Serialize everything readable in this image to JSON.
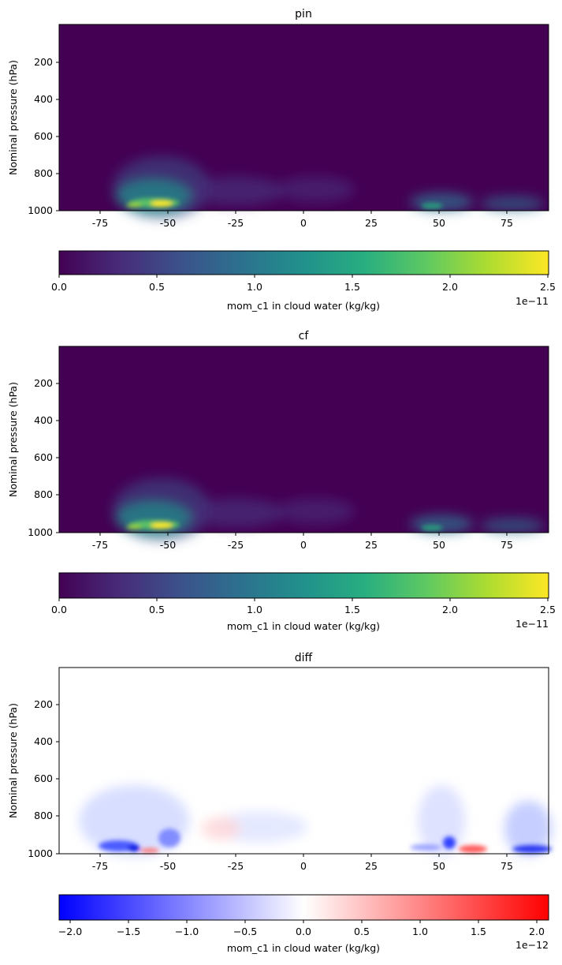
{
  "chart_data": [
    {
      "type": "heatmap",
      "title": "pin",
      "ylabel": "Nominal pressure (hPa)",
      "xlim": [
        -90,
        90
      ],
      "ylim": [
        1000,
        0
      ],
      "x_ticks": [
        "-75",
        "-50",
        "-25",
        "0",
        "25",
        "50",
        "75"
      ],
      "y_ticks": [
        "200",
        "400",
        "600",
        "800",
        "1000"
      ],
      "colormap": "viridis",
      "colorbar": {
        "label": "mom_c1 in cloud water (kg/kg)",
        "range": [
          0.0,
          2.5
        ],
        "ticks": [
          "0.0",
          "0.5",
          "1.0",
          "1.5",
          "2.0",
          "2.5"
        ],
        "exponent": "1e−11"
      },
      "features": [
        {
          "lat": -55,
          "p": 965,
          "value": 2.5
        },
        {
          "lat": -52,
          "p": 900,
          "value": 1.1
        },
        {
          "lat": -20,
          "p": 900,
          "value": 0.35
        },
        {
          "lat": 55,
          "p": 980,
          "value": 0.9
        },
        {
          "lat": 80,
          "p": 985,
          "value": 0.7
        }
      ]
    },
    {
      "type": "heatmap",
      "title": "cf",
      "ylabel": "Nominal pressure (hPa)",
      "xlim": [
        -90,
        90
      ],
      "ylim": [
        1000,
        0
      ],
      "x_ticks": [
        "-75",
        "-50",
        "-25",
        "0",
        "25",
        "50",
        "75"
      ],
      "y_ticks": [
        "200",
        "400",
        "600",
        "800",
        "1000"
      ],
      "colormap": "viridis",
      "colorbar": {
        "label": "mom_c1 in cloud water (kg/kg)",
        "range": [
          0.0,
          2.5
        ],
        "ticks": [
          "0.0",
          "0.5",
          "1.0",
          "1.5",
          "2.0",
          "2.5"
        ],
        "exponent": "1e−11"
      },
      "features": [
        {
          "lat": -55,
          "p": 965,
          "value": 2.5
        },
        {
          "lat": -52,
          "p": 900,
          "value": 1.1
        },
        {
          "lat": -20,
          "p": 900,
          "value": 0.35
        },
        {
          "lat": 55,
          "p": 980,
          "value": 0.9
        },
        {
          "lat": 80,
          "p": 985,
          "value": 0.7
        }
      ]
    },
    {
      "type": "heatmap",
      "title": "diff",
      "ylabel": "Nominal pressure (hPa)",
      "xlim": [
        -90,
        90
      ],
      "ylim": [
        1000,
        0
      ],
      "x_ticks": [
        "-75",
        "-50",
        "-25",
        "0",
        "25",
        "50",
        "75"
      ],
      "y_ticks": [
        "200",
        "400",
        "600",
        "800",
        "1000"
      ],
      "colormap": "bwr",
      "colorbar": {
        "label": "mom_c1 in cloud water (kg/kg)",
        "range": [
          -2.1,
          2.1
        ],
        "ticks": [
          "−2.0",
          "−1.5",
          "−1.0",
          "−0.5",
          "0.0",
          "0.5",
          "1.0",
          "1.5",
          "2.0"
        ],
        "exponent": "1e−12"
      },
      "features": [
        {
          "lat": -65,
          "p": 975,
          "value": -2.0
        },
        {
          "lat": -57,
          "p": 985,
          "value": 1.5
        },
        {
          "lat": -48,
          "p": 950,
          "value": -1.2
        },
        {
          "lat": -35,
          "p": 880,
          "value": 0.4
        },
        {
          "lat": -15,
          "p": 850,
          "value": -0.3
        },
        {
          "lat": 53,
          "p": 960,
          "value": -1.4
        },
        {
          "lat": 62,
          "p": 985,
          "value": 1.6
        },
        {
          "lat": 85,
          "p": 980,
          "value": -2.0
        }
      ]
    }
  ]
}
